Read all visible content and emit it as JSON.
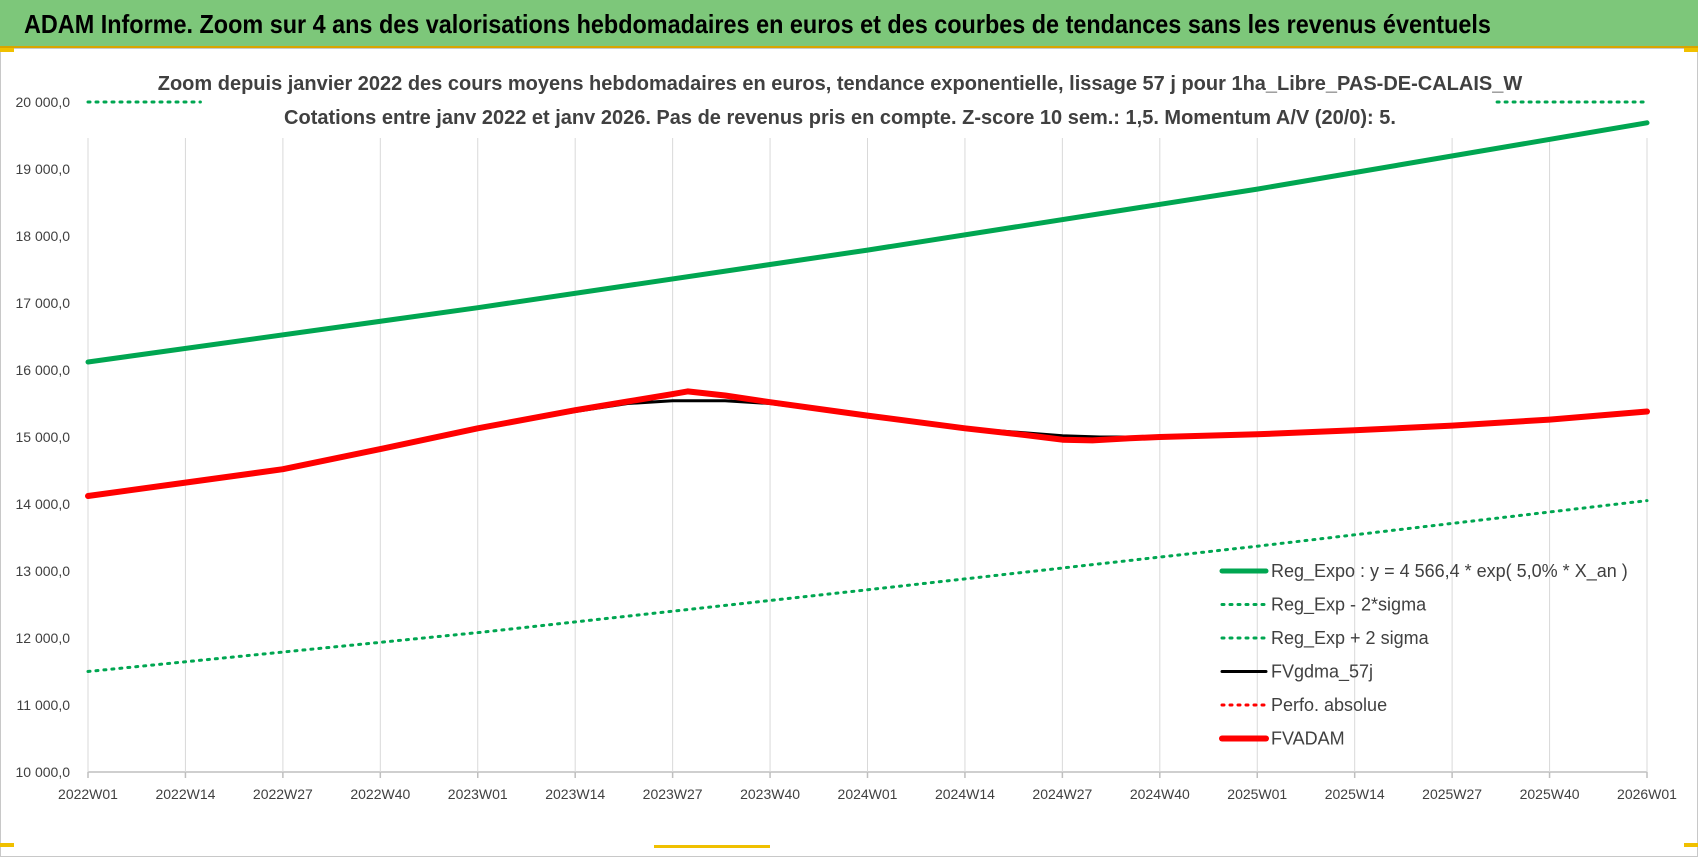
{
  "header": {
    "title": "ADAM Informe. Zoom sur 4 ans des valorisations hebdomadaires en euros et des courbes de tendances sans les revenus éventuels"
  },
  "colors": {
    "banner_bg": "#7dc77a",
    "green": "#00a651",
    "red": "#ff0000",
    "black": "#000000",
    "grid": "#d9d9d9",
    "text": "#404040"
  },
  "chart_data": {
    "type": "line",
    "subtitle_line1": "Zoom depuis janvier 2022 des cours moyens hebdomadaires en euros, tendance exponentielle, lissage 57 j pour 1ha_Libre_PAS-DE-CALAIS_W",
    "subtitle_line2": "Cotations entre janv 2022 et janv 2026. Pas de revenus pris en compte. Z-score 10 sem.: 1,5. Momentum A/V (20/0): 5.",
    "ylim": [
      10000,
      20000
    ],
    "y_ticks": [
      "10 000,0",
      "11 000,0",
      "12 000,0",
      "13 000,0",
      "14 000,0",
      "15 000,0",
      "16 000,0",
      "17 000,0",
      "18 000,0",
      "19 000,0",
      "20 000,0"
    ],
    "x_ticks": [
      "2022W01",
      "2022W14",
      "2022W27",
      "2022W40",
      "2023W01",
      "2023W14",
      "2023W27",
      "2023W40",
      "2024W01",
      "2024W14",
      "2024W27",
      "2024W40",
      "2025W01",
      "2025W14",
      "2025W27",
      "2025W40",
      "2026W01"
    ],
    "x_index_range": [
      0,
      208
    ],
    "series": [
      {
        "name": "Reg_Expo : y = 4 566,4 * exp( 5,0% *  X_an )",
        "color": "#00a651",
        "style": "solid",
        "width": 5,
        "points": [
          [
            0,
            16120
          ],
          [
            52,
            16930
          ],
          [
            104,
            17790
          ],
          [
            156,
            18700
          ],
          [
            208,
            19690
          ]
        ]
      },
      {
        "name": "Reg_Exp - 2*sigma",
        "color": "#00a651",
        "style": "dotted",
        "width": 3,
        "points": [
          [
            0,
            11500
          ],
          [
            52,
            12080
          ],
          [
            104,
            12720
          ],
          [
            156,
            13370
          ],
          [
            208,
            14050
          ]
        ]
      },
      {
        "name": "Reg_Exp + 2 sigma",
        "color": "#00a651",
        "style": "dotted",
        "width": 3,
        "points": [
          [
            0,
            20000
          ],
          [
            15,
            20000
          ]
        ],
        "points_right": [
          [
            188,
            20000
          ],
          [
            208,
            20000
          ]
        ]
      },
      {
        "name": "FVgdma_57j",
        "color": "#000000",
        "style": "solid",
        "width": 3,
        "points": [
          [
            0,
            14120
          ],
          [
            13,
            14320
          ],
          [
            26,
            14520
          ],
          [
            39,
            14820
          ],
          [
            52,
            15130
          ],
          [
            65,
            15380
          ],
          [
            72,
            15500
          ],
          [
            78,
            15540
          ],
          [
            85,
            15540
          ],
          [
            91,
            15500
          ],
          [
            104,
            15310
          ],
          [
            117,
            15130
          ],
          [
            130,
            15020
          ],
          [
            135,
            15000
          ],
          [
            143,
            15000
          ],
          [
            156,
            15040
          ],
          [
            169,
            15100
          ],
          [
            182,
            15170
          ],
          [
            195,
            15260
          ],
          [
            208,
            15380
          ]
        ]
      },
      {
        "name": "Perfo. absolue",
        "color": "#ff0000",
        "style": "dotted",
        "width": 3,
        "points": []
      },
      {
        "name": "FVADAM",
        "color": "#ff0000",
        "style": "solid",
        "width": 6,
        "points": [
          [
            0,
            14120
          ],
          [
            13,
            14320
          ],
          [
            26,
            14520
          ],
          [
            39,
            14820
          ],
          [
            52,
            15130
          ],
          [
            65,
            15400
          ],
          [
            72,
            15530
          ],
          [
            78,
            15640
          ],
          [
            80,
            15680
          ],
          [
            85,
            15620
          ],
          [
            91,
            15520
          ],
          [
            104,
            15320
          ],
          [
            117,
            15130
          ],
          [
            125,
            15030
          ],
          [
            130,
            14960
          ],
          [
            134,
            14950
          ],
          [
            139,
            14980
          ],
          [
            143,
            15000
          ],
          [
            156,
            15040
          ],
          [
            169,
            15100
          ],
          [
            182,
            15170
          ],
          [
            195,
            15260
          ],
          [
            208,
            15380
          ]
        ]
      }
    ]
  }
}
